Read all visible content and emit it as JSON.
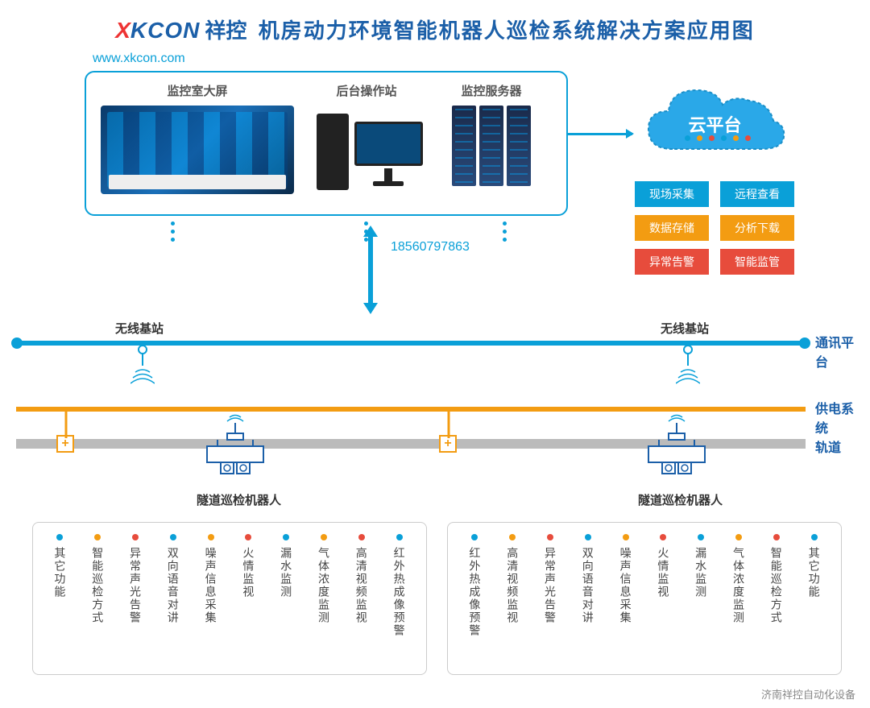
{
  "title": {
    "logo_x": "X",
    "logo_kcon": "KCON",
    "logo_cn": "祥控",
    "main": "机房动力环境智能机器人巡检系统解决方案应用图"
  },
  "url": "www.xkcon.com",
  "control": {
    "screen": "监控室大屏",
    "workstation": "后台操作站",
    "server": "监控服务器"
  },
  "cloud": {
    "label": "云平台"
  },
  "features": [
    {
      "t": "现场采集",
      "c": "#0aa0d8"
    },
    {
      "t": "远程查看",
      "c": "#0aa0d8"
    },
    {
      "t": "数据存储",
      "c": "#f39c12"
    },
    {
      "t": "分析下载",
      "c": "#f39c12"
    },
    {
      "t": "异常告警",
      "c": "#e74c3c"
    },
    {
      "t": "智能监管",
      "c": "#e74c3c"
    }
  ],
  "phone": "18560797863",
  "lines": {
    "comm": "通讯平台",
    "power": "供电系统",
    "track": "轨道"
  },
  "station": "无线基站",
  "robot": "隧道巡检机器人",
  "dot_colors": [
    "#0aa0d8",
    "#f39c12",
    "#e74c3c",
    "#0aa0d8",
    "#f39c12",
    "#e74c3c"
  ],
  "funcs_left": [
    {
      "t": "其它功能",
      "c": "#0aa0d8"
    },
    {
      "t": "智能巡检方式",
      "c": "#f39c12"
    },
    {
      "t": "异常声光告警",
      "c": "#e74c3c"
    },
    {
      "t": "双向语音对讲",
      "c": "#0aa0d8"
    },
    {
      "t": "噪声信息采集",
      "c": "#f39c12"
    },
    {
      "t": "火情监视",
      "c": "#e74c3c"
    },
    {
      "t": "漏水监测",
      "c": "#0aa0d8"
    },
    {
      "t": "气体浓度监测",
      "c": "#f39c12"
    },
    {
      "t": "高清视频监视",
      "c": "#e74c3c"
    },
    {
      "t": "红外热成像预警",
      "c": "#0aa0d8"
    }
  ],
  "funcs_right": [
    {
      "t": "红外热成像预警",
      "c": "#0aa0d8"
    },
    {
      "t": "高清视频监视",
      "c": "#f39c12"
    },
    {
      "t": "异常声光告警",
      "c": "#e74c3c"
    },
    {
      "t": "双向语音对讲",
      "c": "#0aa0d8"
    },
    {
      "t": "噪声信息采集",
      "c": "#f39c12"
    },
    {
      "t": "火情监视",
      "c": "#e74c3c"
    },
    {
      "t": "漏水监测",
      "c": "#0aa0d8"
    },
    {
      "t": "气体浓度监测",
      "c": "#f39c12"
    },
    {
      "t": "智能巡检方式",
      "c": "#e74c3c"
    },
    {
      "t": "其它功能",
      "c": "#0aa0d8"
    }
  ],
  "footer": "济南祥控自动化设备",
  "colors": {
    "teal": "#0aa0d8",
    "orange": "#f39c12",
    "red": "#e74c3c",
    "blue": "#1b5fa8",
    "gray": "#bbb"
  }
}
